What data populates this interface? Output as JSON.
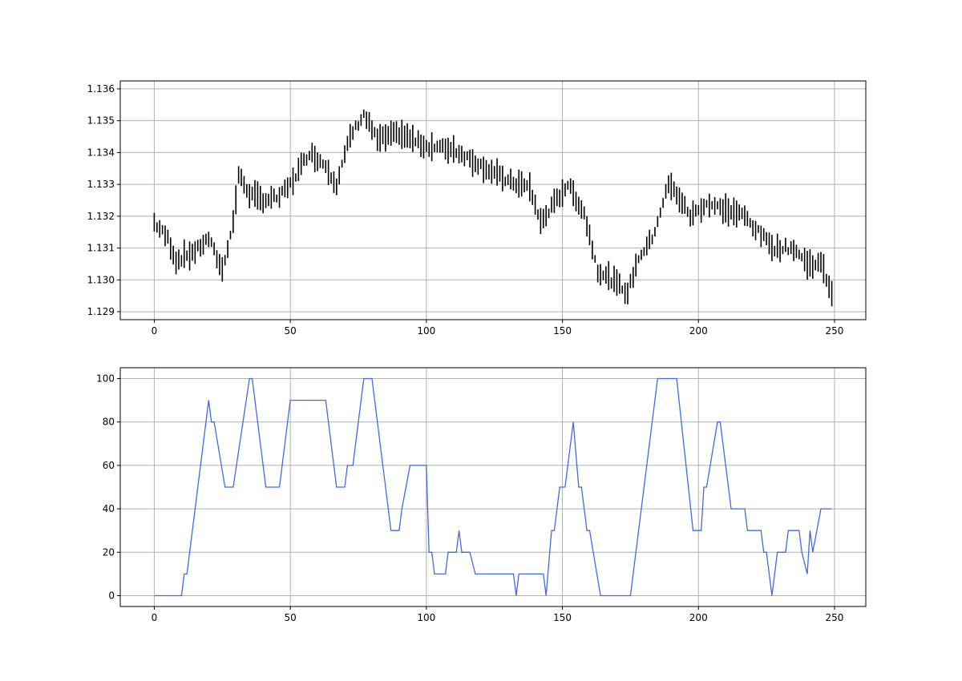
{
  "chart_data": [
    {
      "type": "line",
      "mark_style": "vertical-range-bars",
      "grid": true,
      "xlim": [
        -12.5,
        261.5
      ],
      "ylim": [
        1.12875,
        1.13625
      ],
      "x_ticks": [
        0,
        50,
        100,
        150,
        200,
        250
      ],
      "x_tick_labels": [
        "0",
        "50",
        "100",
        "150",
        "200",
        "250"
      ],
      "y_ticks": [
        1.129,
        1.13,
        1.131,
        1.132,
        1.133,
        1.134,
        1.135,
        1.136
      ],
      "y_tick_labels": [
        "1.129",
        "1.130",
        "1.131",
        "1.132",
        "1.133",
        "1.134",
        "1.135",
        "1.136"
      ],
      "color": "#000000",
      "series_keypoints": [
        {
          "x": 0,
          "y": 1.1318
        },
        {
          "x": 5,
          "y": 1.1313
        },
        {
          "x": 8,
          "y": 1.1306
        },
        {
          "x": 15,
          "y": 1.1309
        },
        {
          "x": 20,
          "y": 1.1313
        },
        {
          "x": 25,
          "y": 1.1303
        },
        {
          "x": 29,
          "y": 1.1318
        },
        {
          "x": 31,
          "y": 1.1333
        },
        {
          "x": 35,
          "y": 1.1327
        },
        {
          "x": 40,
          "y": 1.1325
        },
        {
          "x": 46,
          "y": 1.1326
        },
        {
          "x": 50,
          "y": 1.133
        },
        {
          "x": 57,
          "y": 1.134
        },
        {
          "x": 63,
          "y": 1.1336
        },
        {
          "x": 67,
          "y": 1.133
        },
        {
          "x": 72,
          "y": 1.1345
        },
        {
          "x": 77,
          "y": 1.1352
        },
        {
          "x": 82,
          "y": 1.1344
        },
        {
          "x": 90,
          "y": 1.1346
        },
        {
          "x": 100,
          "y": 1.1342
        },
        {
          "x": 110,
          "y": 1.1341
        },
        {
          "x": 120,
          "y": 1.1336
        },
        {
          "x": 130,
          "y": 1.1331
        },
        {
          "x": 138,
          "y": 1.1329
        },
        {
          "x": 142,
          "y": 1.1318
        },
        {
          "x": 147,
          "y": 1.1324
        },
        {
          "x": 152,
          "y": 1.133
        },
        {
          "x": 158,
          "y": 1.1321
        },
        {
          "x": 163,
          "y": 1.1303
        },
        {
          "x": 168,
          "y": 1.13
        },
        {
          "x": 174,
          "y": 1.1296
        },
        {
          "x": 178,
          "y": 1.1307
        },
        {
          "x": 183,
          "y": 1.1313
        },
        {
          "x": 189,
          "y": 1.133
        },
        {
          "x": 192,
          "y": 1.1327
        },
        {
          "x": 197,
          "y": 1.132
        },
        {
          "x": 203,
          "y": 1.1324
        },
        {
          "x": 210,
          "y": 1.1322
        },
        {
          "x": 217,
          "y": 1.132
        },
        {
          "x": 222,
          "y": 1.1315
        },
        {
          "x": 228,
          "y": 1.131
        },
        {
          "x": 235,
          "y": 1.131
        },
        {
          "x": 240,
          "y": 1.1305
        },
        {
          "x": 245,
          "y": 1.1305
        },
        {
          "x": 249,
          "y": 1.1296
        }
      ]
    },
    {
      "type": "line",
      "grid": true,
      "xlim": [
        -12.5,
        261.5
      ],
      "ylim": [
        -5,
        105
      ],
      "x_ticks": [
        0,
        50,
        100,
        150,
        200,
        250
      ],
      "x_tick_labels": [
        "0",
        "50",
        "100",
        "150",
        "200",
        "250"
      ],
      "y_ticks": [
        0,
        20,
        40,
        60,
        80,
        100
      ],
      "y_tick_labels": [
        "0",
        "20",
        "40",
        "60",
        "80",
        "100"
      ],
      "color": "#4169e1",
      "x": [
        0,
        10,
        11,
        12,
        20,
        21,
        22,
        26,
        27,
        29,
        35,
        36,
        41,
        42,
        46,
        50,
        51,
        63,
        67,
        68,
        70,
        71,
        73,
        77,
        78,
        80,
        87,
        88,
        90,
        91,
        94,
        95,
        100,
        101,
        102,
        103,
        107,
        108,
        111,
        112,
        113,
        114,
        116,
        118,
        119,
        132,
        133,
        134,
        135,
        143,
        144,
        146,
        147,
        149,
        150,
        151,
        154,
        156,
        157,
        159,
        160,
        164,
        165,
        175,
        185,
        192,
        198,
        199,
        201,
        202,
        203,
        207,
        208,
        212,
        213,
        217,
        218,
        223,
        224,
        225,
        227,
        229,
        230,
        232,
        233,
        237,
        238,
        240,
        241,
        242,
        245,
        248,
        249
      ],
      "y": [
        0,
        0,
        10,
        10,
        90,
        80,
        80,
        50,
        50,
        50,
        100,
        100,
        50,
        50,
        50,
        90,
        90,
        90,
        50,
        50,
        50,
        60,
        60,
        100,
        100,
        100,
        30,
        30,
        30,
        40,
        60,
        60,
        60,
        20,
        20,
        10,
        10,
        20,
        20,
        30,
        20,
        20,
        20,
        10,
        10,
        10,
        0,
        10,
        10,
        10,
        0,
        30,
        30,
        50,
        50,
        50,
        80,
        50,
        50,
        30,
        30,
        0,
        0,
        0,
        100,
        100,
        30,
        30,
        30,
        50,
        50,
        80,
        80,
        40,
        40,
        40,
        30,
        30,
        20,
        20,
        0,
        20,
        20,
        20,
        30,
        30,
        20,
        10,
        30,
        20,
        40,
        40,
        40
      ]
    }
  ]
}
